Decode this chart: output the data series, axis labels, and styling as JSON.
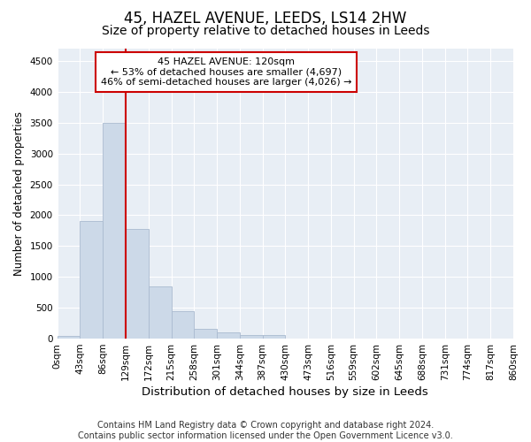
{
  "title": "45, HAZEL AVENUE, LEEDS, LS14 2HW",
  "subtitle": "Size of property relative to detached houses in Leeds",
  "xlabel": "Distribution of detached houses by size in Leeds",
  "ylabel": "Number of detached properties",
  "bar_color": "#ccd9e8",
  "bar_edge_color": "#aabbd0",
  "bar_values": [
    50,
    1900,
    3500,
    1780,
    840,
    450,
    165,
    95,
    60,
    55,
    0,
    0,
    0,
    0,
    0,
    0,
    0,
    0,
    0,
    0
  ],
  "x_labels": [
    "0sqm",
    "43sqm",
    "86sqm",
    "129sqm",
    "172sqm",
    "215sqm",
    "258sqm",
    "301sqm",
    "344sqm",
    "387sqm",
    "430sqm",
    "473sqm",
    "516sqm",
    "559sqm",
    "602sqm",
    "645sqm",
    "688sqm",
    "731sqm",
    "774sqm",
    "817sqm",
    "860sqm"
  ],
  "ylim": [
    0,
    4700
  ],
  "yticks": [
    0,
    500,
    1000,
    1500,
    2000,
    2500,
    3000,
    3500,
    4000,
    4500
  ],
  "annotation_text": "45 HAZEL AVENUE: 120sqm\n← 53% of detached houses are smaller (4,697)\n46% of semi-detached houses are larger (4,026) →",
  "annotation_box_color": "#ffffff",
  "annotation_box_edge_color": "#cc0000",
  "red_line_color": "#cc0000",
  "plot_bg_color": "#e8eef5",
  "fig_bg_color": "#ffffff",
  "grid_color": "#ffffff",
  "footer_text": "Contains HM Land Registry data © Crown copyright and database right 2024.\nContains public sector information licensed under the Open Government Licence v3.0.",
  "title_fontsize": 12,
  "subtitle_fontsize": 10,
  "xlabel_fontsize": 9.5,
  "ylabel_fontsize": 8.5,
  "footer_fontsize": 7,
  "tick_fontsize": 7.5,
  "annot_fontsize": 8
}
